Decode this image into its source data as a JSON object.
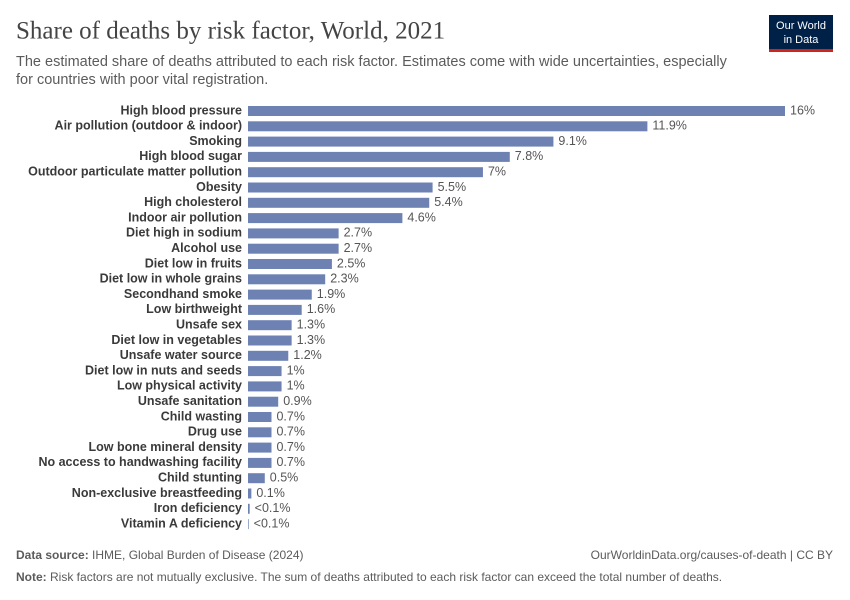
{
  "chart_data": {
    "type": "bar",
    "orientation": "horizontal",
    "title": "Share of deaths by risk factor, World, 2021",
    "subtitle": [
      "The estimated share of deaths attributed to each risk factor. Estimates come with wide uncertainties, especially",
      "for countries with poor vital registration."
    ],
    "categories": [
      "High blood pressure",
      "Air pollution (outdoor & indoor)",
      "Smoking",
      "High blood sugar",
      "Outdoor particulate matter pollution",
      "Obesity",
      "High cholesterol",
      "Indoor air pollution",
      "Diet high in sodium",
      "Alcohol use",
      "Diet low in fruits",
      "Diet low in whole grains",
      "Secondhand smoke",
      "Low birthweight",
      "Unsafe sex",
      "Diet low in vegetables",
      "Unsafe water source",
      "Diet low in nuts and seeds",
      "Low physical activity",
      "Unsafe sanitation",
      "Child wasting",
      "Drug use",
      "Low bone mineral density",
      "No access to handwashing facility",
      "Child stunting",
      "Non-exclusive breastfeeding",
      "Iron deficiency",
      "Vitamin A deficiency"
    ],
    "values": [
      16,
      11.9,
      9.1,
      7.8,
      7,
      5.5,
      5.4,
      4.6,
      2.7,
      2.7,
      2.5,
      2.3,
      1.9,
      1.6,
      1.3,
      1.3,
      1.2,
      1,
      1,
      0.9,
      0.7,
      0.7,
      0.7,
      0.7,
      0.5,
      0.1,
      0.05,
      0.02
    ],
    "value_labels": [
      "16%",
      "11.9%",
      "9.1%",
      "7.8%",
      "7%",
      "5.5%",
      "5.4%",
      "4.6%",
      "2.7%",
      "2.7%",
      "2.5%",
      "2.3%",
      "1.9%",
      "1.6%",
      "1.3%",
      "1.3%",
      "1.2%",
      "1%",
      "1%",
      "0.9%",
      "0.7%",
      "0.7%",
      "0.7%",
      "0.7%",
      "0.5%",
      "0.1%",
      "<0.1%",
      "<0.1%"
    ],
    "color": "#6d82b3"
  },
  "logo": [
    "Our World",
    "in Data"
  ],
  "source": {
    "label": "Data source:",
    "text": "IHME, Global Burden of Disease (2024)"
  },
  "url": "OurWorldinData.org/causes-of-death | CC BY",
  "note": {
    "label": "Note:",
    "text": "Risk factors are not mutually exclusive. The sum of deaths attributed to each risk factor can exceed the total number of deaths."
  }
}
